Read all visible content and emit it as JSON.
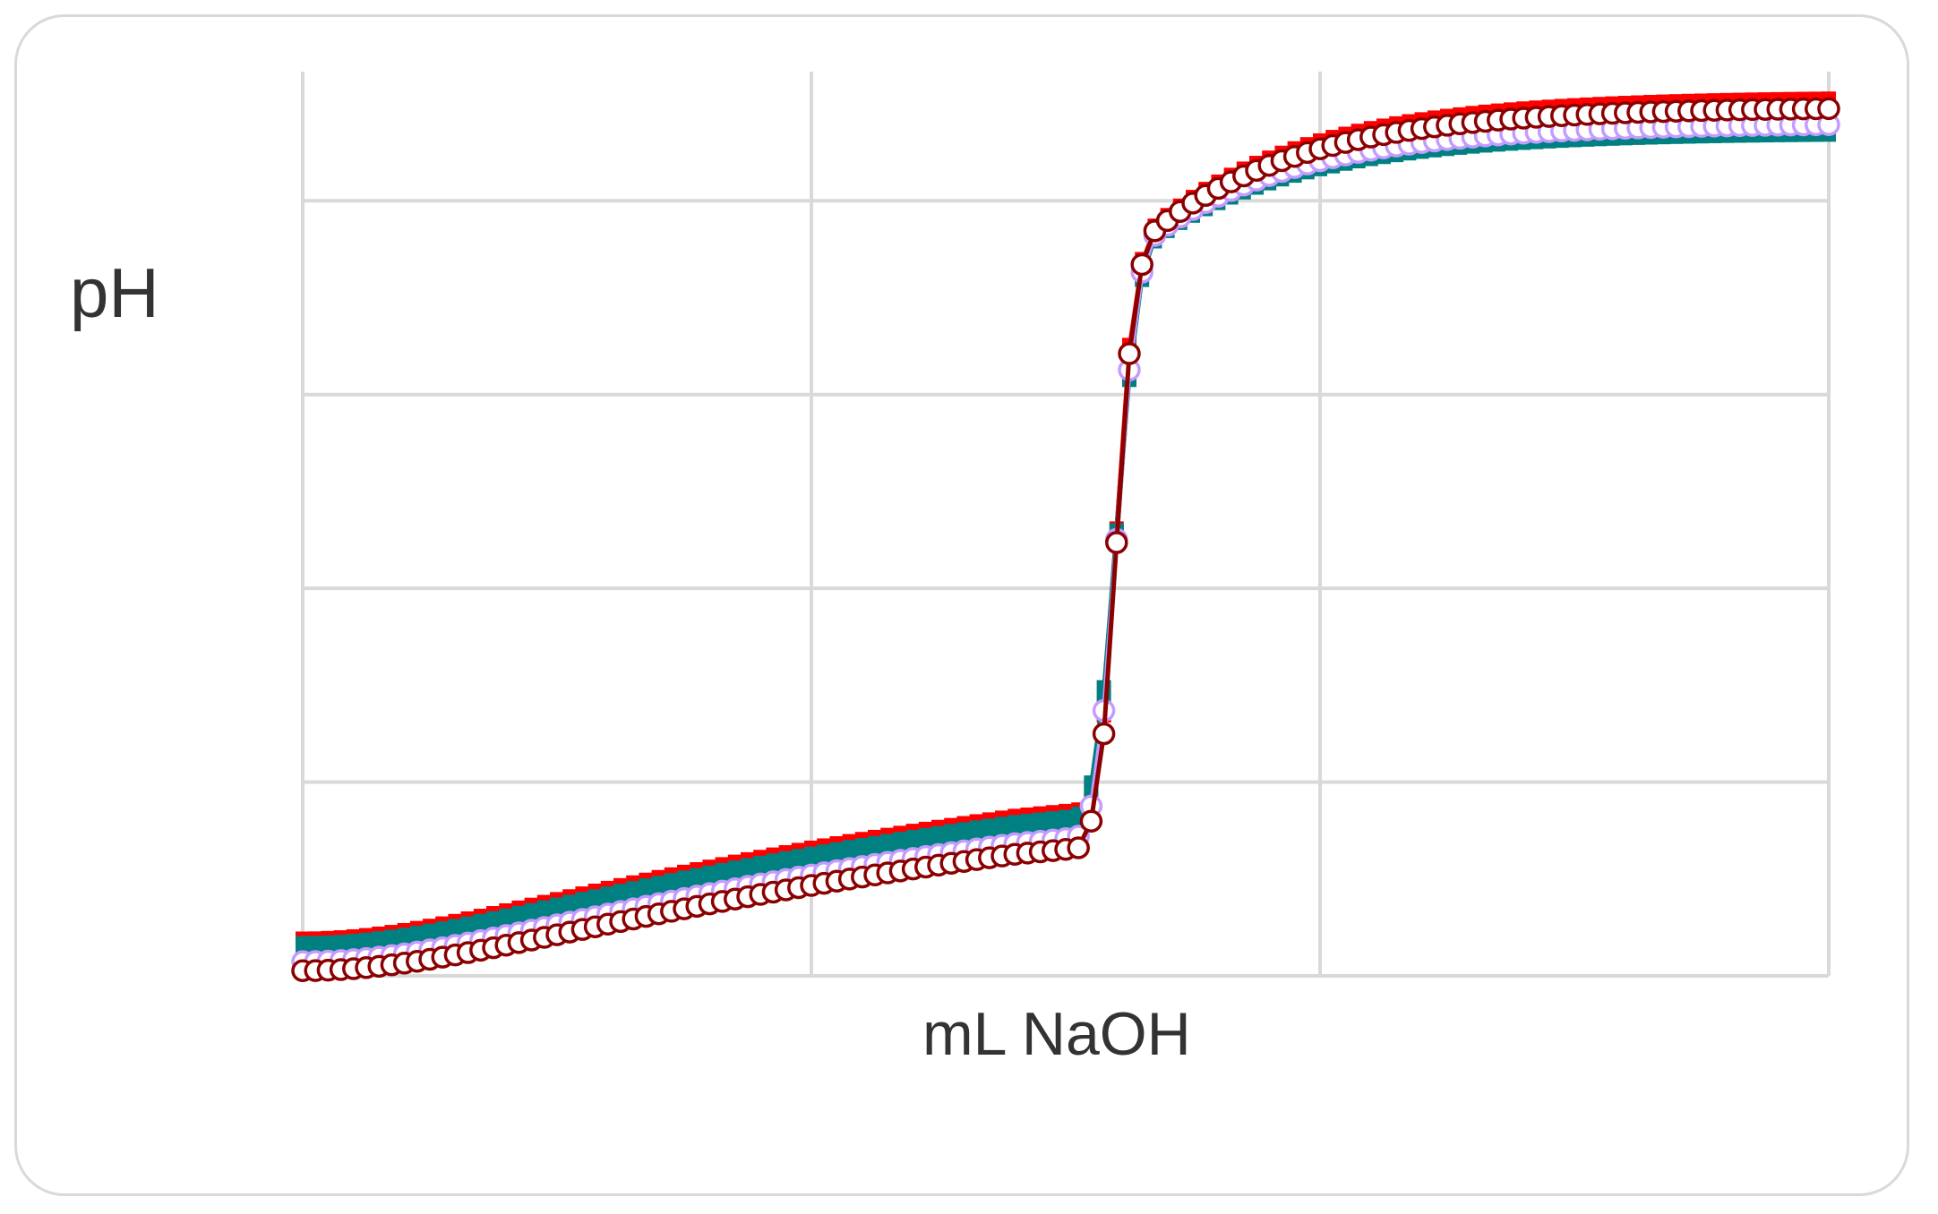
{
  "chart_data": {
    "type": "scatter",
    "title": "",
    "xlabel": "mL NaOH",
    "ylabel": "pH",
    "xlim": [
      0,
      60
    ],
    "ylim": [
      0,
      14
    ],
    "grid": true,
    "legend": "none",
    "equivalence_x": 32,
    "series": [
      {
        "key": "a",
        "color": "#1f6fb5",
        "marker": "line",
        "ph_start": 0.45,
        "ph_end": 13.05,
        "k_before": 0.00985,
        "steep": 1.3
      },
      {
        "key": "b",
        "color": "#ff0000",
        "marker": "square",
        "ph_start": 0.52,
        "ph_end": 13.55,
        "k_before": 0.01035,
        "steep": 1.55
      },
      {
        "key": "c",
        "color": "#008080",
        "marker": "square",
        "ph_start": 0.45,
        "ph_end": 13.1,
        "k_before": 0.01,
        "steep": 1.15
      },
      {
        "key": "d",
        "color": "#c49bff",
        "marker": "circle",
        "ph_start": 0.22,
        "ph_end": 13.2,
        "k_before": 0.0094,
        "steep": 1.25
      },
      {
        "key": "e",
        "color": "#8b0000",
        "marker": "circle",
        "ph_start": 0.08,
        "ph_end": 13.45,
        "k_before": 0.0091,
        "steep": 1.5
      }
    ]
  }
}
